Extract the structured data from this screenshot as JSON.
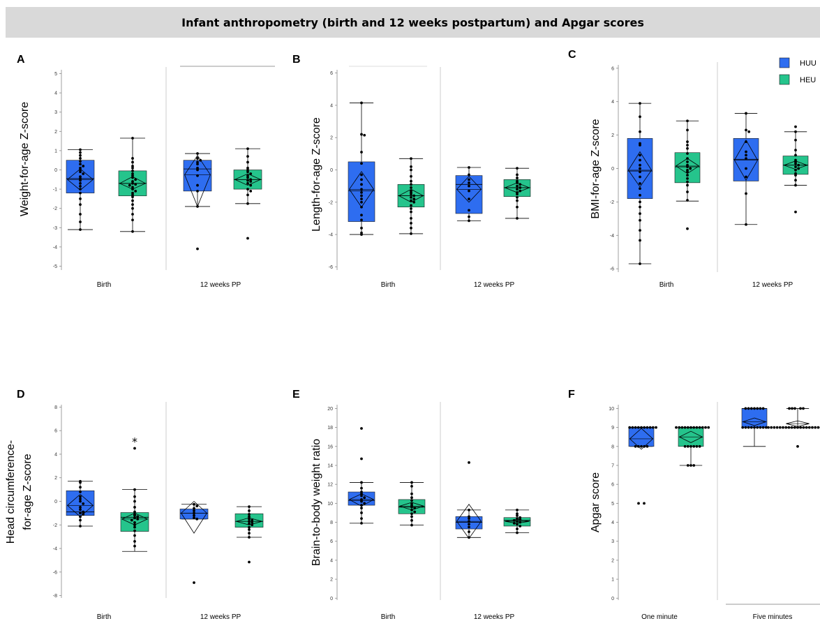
{
  "header": {
    "title": "Infant anthropometry (birth and 12 weeks postpartum) and Apgar scores"
  },
  "legend": {
    "position": "top-right",
    "entries": [
      "HUU",
      "HEU"
    ]
  },
  "colors": {
    "HUU": "#2e6df0",
    "HEU": "#25c48c",
    "marker": "#000000",
    "whisker": "#000000",
    "divider": "#cccccc"
  },
  "chart_data": [
    {
      "panel": "A",
      "type": "box",
      "ylabel": "Weight-for-age Z-score",
      "ylim": [
        -5.2,
        5.2
      ],
      "yticks": [
        -5,
        -4,
        -3,
        -2,
        -1,
        0,
        1,
        2,
        3,
        4,
        5
      ],
      "groups": [
        "Birth",
        "12 weeks PP"
      ],
      "boxes": [
        {
          "group": "Birth",
          "series": "HUU",
          "wlo": -3.1,
          "q1": -1.2,
          "med": -0.45,
          "q3": 0.5,
          "whi": 1.05,
          "mean": -0.5,
          "cilo": -1.05,
          "cihi": 0.05,
          "outliers": [],
          "points": [
            1.05,
            0.9,
            0.75,
            0.6,
            0.45,
            0.3,
            0.2,
            0.1,
            0.0,
            -0.1,
            -0.2,
            -0.35,
            -0.45,
            -0.55,
            -0.7,
            -0.85,
            -1.0,
            -1.2,
            -1.5,
            -1.8,
            -2.3,
            -2.7,
            -3.1
          ]
        },
        {
          "group": "Birth",
          "series": "HEU",
          "wlo": -3.2,
          "q1": -1.35,
          "med": -0.7,
          "q3": -0.05,
          "whi": 1.65,
          "mean": -0.7,
          "cilo": -1.0,
          "cihi": -0.35,
          "outliers": [],
          "points": [
            1.65,
            0.6,
            0.4,
            0.2,
            0.1,
            -0.05,
            -0.2,
            -0.3,
            -0.4,
            -0.5,
            -0.6,
            -0.7,
            -0.75,
            -0.8,
            -0.9,
            -1.0,
            -1.1,
            -1.2,
            -1.3,
            -1.4,
            -1.6,
            -1.8,
            -2.0,
            -2.3,
            -2.6,
            -3.2
          ]
        },
        {
          "group": "12 weeks PP",
          "series": "HUU",
          "wlo": -1.9,
          "q1": -1.1,
          "med": 0.05,
          "q3": 0.5,
          "whi": 0.85,
          "mean": -0.25,
          "cilo": -1.9,
          "cihi": 0.75,
          "outliers": [
            -4.1
          ],
          "points": [
            0.85,
            0.6,
            0.5,
            0.4,
            0.3,
            0.1,
            0.0,
            -0.3,
            -0.8,
            -1.1,
            -1.9
          ]
        },
        {
          "group": "12 weeks PP",
          "series": "HEU",
          "wlo": -1.75,
          "q1": -1.0,
          "med": -0.5,
          "q3": 0.0,
          "whi": 1.1,
          "mean": -0.5,
          "cilo": -0.8,
          "cihi": -0.2,
          "outliers": [
            -3.55
          ],
          "points": [
            1.1,
            0.7,
            0.4,
            0.1,
            0.0,
            -0.1,
            -0.2,
            -0.3,
            -0.4,
            -0.5,
            -0.55,
            -0.6,
            -0.7,
            -0.8,
            -1.0,
            -1.1,
            -1.3,
            -1.75
          ]
        }
      ]
    },
    {
      "panel": "B",
      "type": "box",
      "ylabel": "Length-for-age Z-score",
      "ylim": [
        -6.2,
        6.2
      ],
      "yticks": [
        -6,
        -4,
        -2,
        0,
        2,
        4,
        6
      ],
      "groups": [
        "Birth",
        "12 weeks PP"
      ],
      "boxes": [
        {
          "group": "Birth",
          "series": "HUU",
          "wlo": -4.0,
          "q1": -3.2,
          "med": -1.3,
          "q3": 0.5,
          "whi": 4.15,
          "mean": -1.2,
          "cilo": -2.3,
          "cihi": -0.1,
          "outliers": [],
          "points": [
            4.15,
            2.2,
            2.15,
            1.1,
            0.4,
            -0.3,
            -0.6,
            -0.9,
            -1.2,
            -1.4,
            -1.6,
            -1.8,
            -2.0,
            -2.3,
            -2.8,
            -3.1,
            -3.6,
            -3.9,
            -4.0
          ]
        },
        {
          "group": "Birth",
          "series": "HEU",
          "wlo": -3.95,
          "q1": -2.3,
          "med": -1.6,
          "q3": -0.9,
          "whi": 0.7,
          "mean": -1.6,
          "cilo": -2.0,
          "cihi": -1.2,
          "outliers": [],
          "points": [
            0.7,
            0.2,
            0.0,
            -0.4,
            -0.7,
            -0.9,
            -1.1,
            -1.3,
            -1.4,
            -1.5,
            -1.6,
            -1.7,
            -1.8,
            -1.9,
            -2.0,
            -2.2,
            -2.4,
            -2.6,
            -3.0,
            -3.3,
            -3.6,
            -3.95
          ]
        },
        {
          "group": "12 weeks PP",
          "series": "HUU",
          "wlo": -3.15,
          "q1": -2.7,
          "med": -0.9,
          "q3": -0.35,
          "whi": 0.15,
          "mean": -1.2,
          "cilo": -2.0,
          "cihi": -0.4,
          "outliers": [],
          "points": [
            0.15,
            -0.3,
            -0.6,
            -0.8,
            -1.0,
            -1.3,
            -1.8,
            -2.5,
            -2.9,
            -3.15
          ]
        },
        {
          "group": "12 weeks PP",
          "series": "HEU",
          "wlo": -3.0,
          "q1": -1.65,
          "med": -1.1,
          "q3": -0.6,
          "whi": 0.1,
          "mean": -1.1,
          "cilo": -1.4,
          "cihi": -0.8,
          "outliers": [],
          "points": [
            0.1,
            -0.3,
            -0.5,
            -0.7,
            -0.8,
            -0.9,
            -1.0,
            -1.1,
            -1.2,
            -1.3,
            -1.4,
            -1.5,
            -1.7,
            -1.9,
            -2.3,
            -3.0
          ]
        }
      ]
    },
    {
      "panel": "C",
      "type": "box",
      "ylabel": "BMI-for-age Z-score",
      "ylim": [
        -6.2,
        6.2
      ],
      "yticks": [
        -6,
        -4,
        -2,
        0,
        2,
        4,
        6
      ],
      "groups": [
        "Birth",
        "12 weeks PP"
      ],
      "boxes": [
        {
          "group": "Birth",
          "series": "HUU",
          "wlo": -5.7,
          "q1": -1.8,
          "med": -0.15,
          "q3": 1.8,
          "whi": 3.9,
          "mean": -0.1,
          "cilo": -1.1,
          "cihi": 1.0,
          "outliers": [],
          "points": [
            3.9,
            3.1,
            2.2,
            1.5,
            1.4,
            0.8,
            0.5,
            0.2,
            0.0,
            -0.2,
            -0.5,
            -0.9,
            -1.2,
            -1.6,
            -2.0,
            -2.3,
            -2.7,
            -3.1,
            -3.7,
            -4.3,
            -5.7
          ]
        },
        {
          "group": "Birth",
          "series": "HEU",
          "wlo": -1.95,
          "q1": -0.85,
          "med": 0.1,
          "q3": 0.95,
          "whi": 2.85,
          "mean": 0.15,
          "cilo": -0.3,
          "cihi": 0.6,
          "outliers": [
            -3.6
          ],
          "points": [
            2.85,
            2.3,
            1.6,
            1.4,
            1.2,
            0.9,
            0.6,
            0.4,
            0.2,
            0.1,
            0.0,
            -0.1,
            -0.2,
            -0.4,
            -0.6,
            -0.8,
            -1.0,
            -1.4,
            -1.9
          ]
        },
        {
          "group": "12 weeks PP",
          "series": "HUU",
          "wlo": -3.35,
          "q1": -0.75,
          "med": 0.55,
          "q3": 1.8,
          "whi": 3.3,
          "mean": 0.5,
          "cilo": -0.7,
          "cihi": 1.7,
          "outliers": [],
          "points": [
            3.3,
            2.3,
            2.2,
            1.6,
            1.0,
            0.8,
            0.6,
            0.0,
            -0.5,
            -1.5,
            -3.35
          ]
        },
        {
          "group": "12 weeks PP",
          "series": "HEU",
          "wlo": -1.0,
          "q1": -0.35,
          "med": 0.2,
          "q3": 0.75,
          "whi": 2.2,
          "mean": 0.2,
          "cilo": -0.05,
          "cihi": 0.45,
          "outliers": [
            2.5,
            -2.6
          ],
          "points": [
            2.2,
            1.7,
            1.1,
            0.8,
            0.5,
            0.4,
            0.3,
            0.2,
            0.1,
            0.0,
            -0.1,
            -0.3,
            -0.4,
            -0.7,
            -1.0
          ]
        }
      ]
    },
    {
      "panel": "D",
      "type": "box",
      "ylabel": "Head circumference-for-age Z-score",
      "ylim": [
        -8.2,
        8.2
      ],
      "yticks": [
        -8,
        -6,
        -4,
        -2,
        0,
        2,
        4,
        6,
        8
      ],
      "groups": [
        "Birth",
        "12 weeks PP"
      ],
      "annotation": "*",
      "boxes": [
        {
          "group": "Birth",
          "series": "HUU",
          "wlo": -2.1,
          "q1": -1.2,
          "med": -0.9,
          "q3": 0.9,
          "whi": 1.7,
          "mean": -0.35,
          "cilo": -1.3,
          "cihi": 0.6,
          "outliers": [],
          "points": [
            1.7,
            1.6,
            1.2,
            0.8,
            0.4,
            0.2,
            0.0,
            -0.2,
            -0.5,
            -0.7,
            -0.9,
            -1.0,
            -1.1,
            -1.3,
            -1.6,
            -2.1
          ]
        },
        {
          "group": "Birth",
          "series": "HEU",
          "wlo": -4.25,
          "q1": -2.55,
          "med": -1.35,
          "q3": -0.95,
          "whi": 1.0,
          "mean": -1.5,
          "cilo": -2.0,
          "cihi": -1.0,
          "outliers": [
            4.5
          ],
          "points": [
            1.0,
            0.4,
            0.0,
            -0.5,
            -0.9,
            -1.1,
            -1.2,
            -1.3,
            -1.4,
            -1.5,
            -1.6,
            -1.8,
            -2.0,
            -2.2,
            -2.5,
            -2.9,
            -3.4,
            -3.8
          ]
        },
        {
          "group": "12 weeks PP",
          "series": "HUU",
          "wlo": -1.5,
          "q1": -1.5,
          "med": -1.0,
          "q3": -0.65,
          "whi": -0.25,
          "mean": -1.0,
          "cilo": -2.7,
          "cihi": 0.0,
          "outliers": [
            -6.9
          ],
          "points": [
            -0.25,
            -0.4,
            -0.6,
            -0.8,
            -1.0,
            -1.2,
            -1.4,
            -1.5
          ]
        },
        {
          "group": "12 weeks PP",
          "series": "HEU",
          "wlo": -3.05,
          "q1": -2.2,
          "med": -1.7,
          "q3": -1.05,
          "whi": -0.45,
          "mean": -1.7,
          "cilo": -2.0,
          "cihi": -1.4,
          "outliers": [
            -5.15
          ],
          "points": [
            -0.45,
            -0.8,
            -1.1,
            -1.3,
            -1.5,
            -1.6,
            -1.7,
            -1.8,
            -1.9,
            -2.0,
            -2.2,
            -2.4,
            -2.7,
            -3.05
          ]
        }
      ]
    },
    {
      "panel": "E",
      "type": "box",
      "ylabel": "Brain-to-body weight ratio",
      "ylim": [
        -0.2,
        20.4
      ],
      "yticks": [
        0,
        2,
        4,
        6,
        8,
        10,
        12,
        14,
        16,
        18,
        20
      ],
      "groups": [
        "Birth",
        "12 weeks PP"
      ],
      "boxes": [
        {
          "group": "Birth",
          "series": "HUU",
          "wlo": 7.9,
          "q1": 9.8,
          "med": 10.3,
          "q3": 11.2,
          "whi": 12.2,
          "mean": 10.4,
          "cilo": 9.7,
          "cihi": 11.0,
          "outliers": [
            14.7,
            17.9
          ],
          "points": [
            12.2,
            11.6,
            11.2,
            11.0,
            10.8,
            10.6,
            10.4,
            10.2,
            10.0,
            9.8,
            9.5,
            9.0,
            8.4,
            7.9
          ]
        },
        {
          "group": "Birth",
          "series": "HEU",
          "wlo": 7.7,
          "q1": 8.9,
          "med": 9.6,
          "q3": 10.4,
          "whi": 12.2,
          "mean": 9.7,
          "cilo": 9.3,
          "cihi": 10.1,
          "outliers": [],
          "points": [
            12.2,
            11.8,
            11.0,
            10.6,
            10.3,
            10.0,
            9.8,
            9.6,
            9.5,
            9.3,
            9.1,
            8.9,
            8.6,
            8.2,
            7.7
          ]
        },
        {
          "group": "12 weeks PP",
          "series": "HUU",
          "wlo": 6.4,
          "q1": 7.3,
          "med": 8.0,
          "q3": 8.6,
          "whi": 9.3,
          "mean": 8.1,
          "cilo": 6.3,
          "cihi": 9.9,
          "outliers": [
            14.3
          ],
          "points": [
            9.3,
            8.6,
            8.4,
            8.1,
            7.8,
            7.5,
            7.0,
            6.4
          ]
        },
        {
          "group": "12 weeks PP",
          "series": "HEU",
          "wlo": 6.9,
          "q1": 7.6,
          "med": 8.2,
          "q3": 8.5,
          "whi": 9.3,
          "mean": 8.1,
          "cilo": 7.9,
          "cihi": 8.3,
          "outliers": [],
          "points": [
            9.3,
            8.9,
            8.7,
            8.5,
            8.4,
            8.3,
            8.2,
            8.1,
            8.0,
            7.9,
            7.8,
            7.6,
            7.3,
            6.9
          ]
        }
      ]
    },
    {
      "panel": "F",
      "type": "box",
      "ylabel": "Apgar score",
      "ylim": [
        -0.1,
        10.2
      ],
      "yticks": [
        0,
        1,
        2,
        3,
        4,
        5,
        6,
        7,
        8,
        9,
        10
      ],
      "groups": [
        "One minute",
        "Five minutes"
      ],
      "boxes": [
        {
          "group": "One minute",
          "series": "HUU",
          "wlo": 8,
          "q1": 8,
          "med": 9,
          "q3": 9,
          "whi": 9,
          "mean": 8.4,
          "cilo": 7.85,
          "cihi": 8.95,
          "outliers": [
            5,
            5
          ],
          "points": [
            9,
            9,
            9,
            9,
            9,
            9,
            9,
            9,
            9,
            9,
            8,
            8,
            8,
            8,
            8
          ]
        },
        {
          "group": "One minute",
          "series": "HEU",
          "wlo": 7,
          "q1": 8,
          "med": 9,
          "q3": 9,
          "whi": 9,
          "mean": 8.5,
          "cilo": 8.2,
          "cihi": 8.8,
          "outliers": [],
          "points": [
            9,
            9,
            9,
            9,
            9,
            9,
            9,
            9,
            9,
            9,
            9,
            9,
            8,
            8,
            8,
            8,
            8,
            8,
            7,
            7,
            7
          ]
        },
        {
          "group": "Five minutes",
          "series": "HUU",
          "wlo": 8,
          "q1": 9,
          "med": 10,
          "q3": 10,
          "whi": 10,
          "mean": 9.3,
          "cilo": 9.1,
          "cihi": 9.5,
          "outliers": [],
          "points": [
            10,
            10,
            10,
            10,
            10,
            10,
            10,
            9,
            9,
            9,
            9,
            9,
            9,
            9,
            9,
            9
          ]
        },
        {
          "group": "Five minutes",
          "series": "HEU",
          "wlo": 9,
          "q1": 9,
          "med": 9,
          "q3": 9,
          "whi": 10,
          "mean": 9.2,
          "cilo": 9.05,
          "cihi": 9.35,
          "outliers": [
            10,
            10,
            10,
            10,
            10,
            8
          ],
          "points": [
            9,
            9,
            9,
            9,
            9,
            9,
            9,
            9,
            9,
            9,
            9,
            9,
            9,
            9,
            9,
            9,
            9,
            9,
            9,
            9,
            9,
            9
          ]
        }
      ]
    }
  ]
}
